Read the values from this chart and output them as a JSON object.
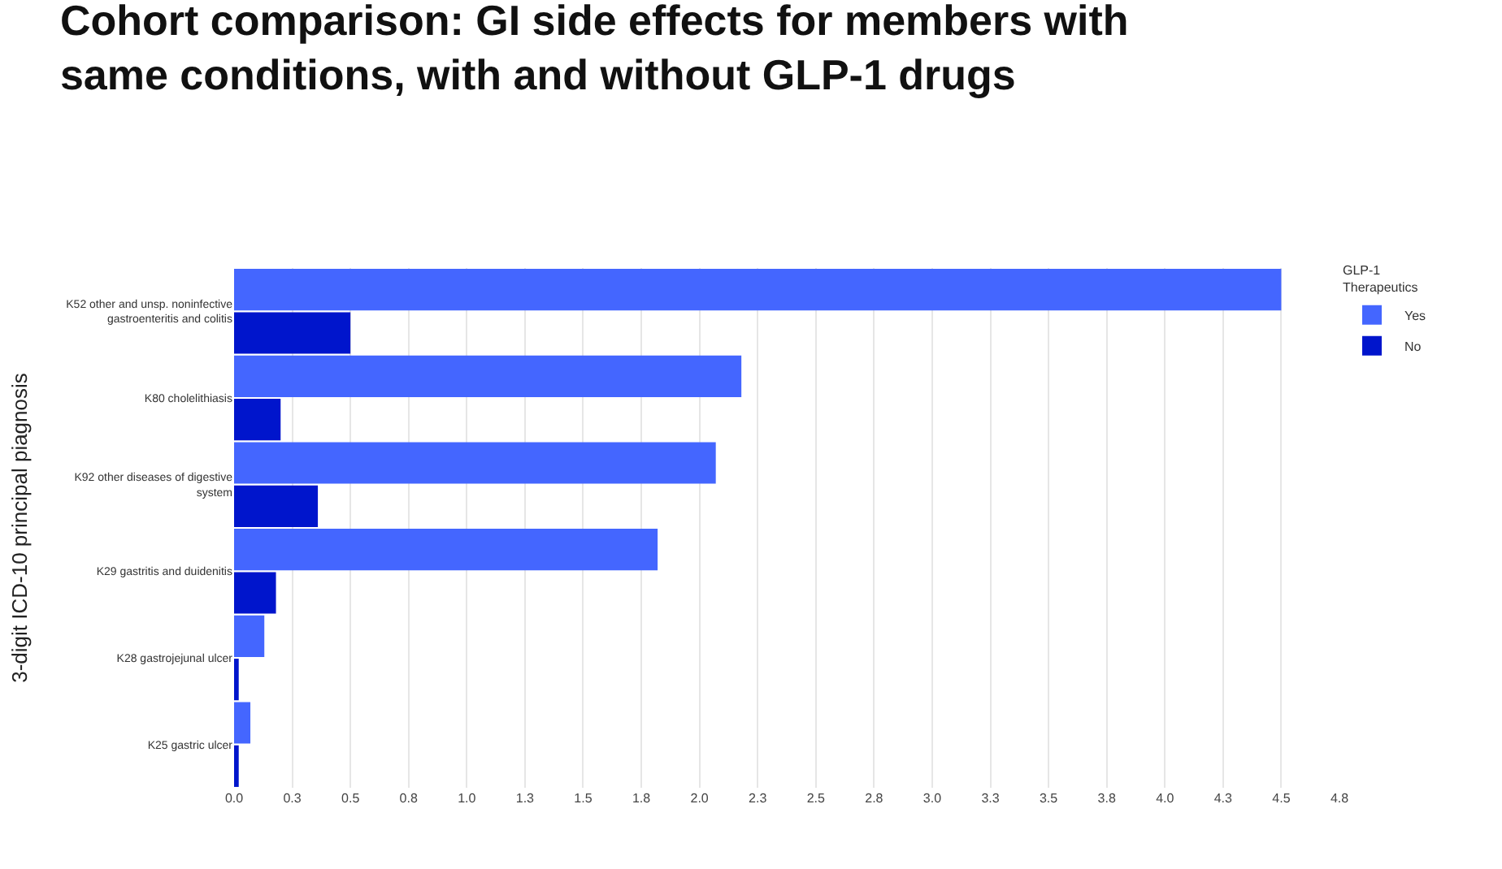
{
  "chart_data": {
    "type": "bar",
    "orientation": "horizontal",
    "title": "Cohort comparison: GI side effects for members with same conditions, with and without GLP-1 drugs",
    "ylabel": "3-digit ICD-10 principal piagnosis",
    "legend_title": "GLP-1 Therapeutics",
    "categories": [
      "K52 other and unsp. noninfective gastroenteritis and colitis",
      "K80 cholelithiasis",
      "K92 other diseases of digestive system",
      "K29 gastritis and duidenitis",
      "K28 gastrojejunal ulcer",
      "K25 gastric ulcer"
    ],
    "series": [
      {
        "name": "Yes",
        "color": "#4466ff",
        "values": [
          4.5,
          2.18,
          2.07,
          1.82,
          0.13,
          0.07
        ]
      },
      {
        "name": "No",
        "color": "#0015cc",
        "values": [
          0.5,
          0.2,
          0.36,
          0.18,
          0.02,
          0.02
        ]
      }
    ],
    "xlim": [
      0,
      4.75
    ],
    "xticks": [
      {
        "value": 0,
        "label": "0.0"
      },
      {
        "value": 0.25,
        "label": "0.3"
      },
      {
        "value": 0.5,
        "label": "0.5"
      },
      {
        "value": 0.75,
        "label": "0.8"
      },
      {
        "value": 1,
        "label": "1.0"
      },
      {
        "value": 1.25,
        "label": "1.3"
      },
      {
        "value": 1.5,
        "label": "1.5"
      },
      {
        "value": 1.75,
        "label": "1.8"
      },
      {
        "value": 2,
        "label": "2.0"
      },
      {
        "value": 2.25,
        "label": "2.3"
      },
      {
        "value": 2.5,
        "label": "2.5"
      },
      {
        "value": 2.75,
        "label": "2.8"
      },
      {
        "value": 3,
        "label": "3.0"
      },
      {
        "value": 3.25,
        "label": "3.3"
      },
      {
        "value": 3.5,
        "label": "3.5"
      },
      {
        "value": 3.75,
        "label": "3.8"
      },
      {
        "value": 4,
        "label": "4.0"
      },
      {
        "value": 4.25,
        "label": "4.3"
      },
      {
        "value": 4.5,
        "label": "4.5"
      },
      {
        "value": 4.75,
        "label": "4.8"
      }
    ],
    "grid": "x",
    "legend": "top right"
  }
}
